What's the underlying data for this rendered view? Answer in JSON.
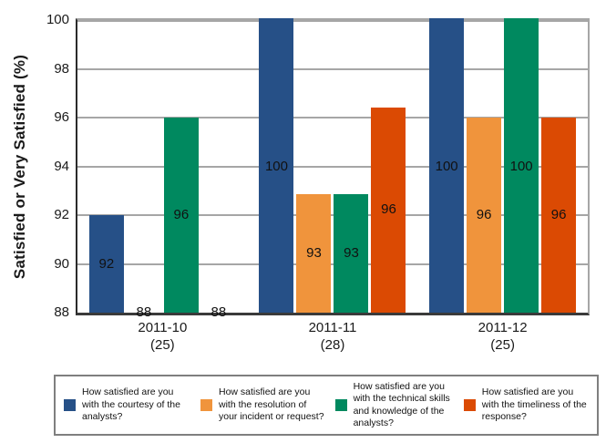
{
  "chart_data": {
    "type": "bar",
    "title": "",
    "ylabel": "Satisfied or Very Satisfied (%)",
    "xlabel": "",
    "ylim": [
      88,
      100
    ],
    "yticks": [
      88,
      90,
      92,
      94,
      96,
      98,
      100
    ],
    "grid": true,
    "legend_position": "bottom",
    "categories": [
      {
        "label": "2011-10",
        "sublabel": "(25)"
      },
      {
        "label": "2011-11",
        "sublabel": "(28)"
      },
      {
        "label": "2011-12",
        "sublabel": "(25)"
      }
    ],
    "series": [
      {
        "name": "How satisfied are you with the courtesy of the analysts?",
        "color": "#265087",
        "values": [
          92,
          100,
          100
        ],
        "bar_labels": [
          "92",
          "100",
          "100"
        ],
        "legend_lines": [
          "How satisfied are you",
          "with the courtesy of the",
          "analysts?"
        ]
      },
      {
        "name": "How satisfied are you with the resolution of your incident or request?",
        "color": "#F0943C",
        "values": [
          88,
          92.86,
          96
        ],
        "bar_labels": [
          "88",
          "93",
          "96"
        ],
        "legend_lines": [
          "How satisfied are you",
          "with the resolution of",
          "your incident or request?"
        ]
      },
      {
        "name": "How satisfied are you with the technical skills and knowledge of the analysts?",
        "color": "#00895F",
        "values": [
          96,
          92.86,
          100
        ],
        "bar_labels": [
          "96",
          "93",
          "100"
        ],
        "legend_lines": [
          "How satisfied are you",
          "with the technical skills",
          "and knowledge of the",
          "analysts?"
        ]
      },
      {
        "name": "How satisfied are you with the timeliness of the response?",
        "color": "#DB4A03",
        "values": [
          88,
          96.43,
          96
        ],
        "bar_labels": [
          "88",
          "96",
          "96"
        ],
        "legend_lines": [
          "How satisfied are you",
          "with the timeliness of the",
          "response?"
        ]
      }
    ]
  },
  "colors": {
    "grid": "#A6A6A6",
    "axis_dark": "#3A3A3A",
    "legend_border": "#7F7F7F",
    "text": "#111111",
    "background": "#FFFFFF"
  }
}
